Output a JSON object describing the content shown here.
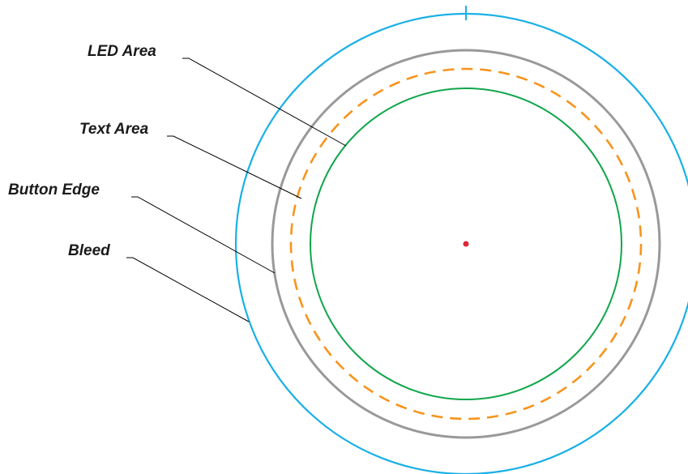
{
  "labels": {
    "led_area": "LED Area",
    "text_area": "Text Area",
    "button_edge": "Button Edge",
    "bleed": "Bleed"
  },
  "colors": {
    "bleed": "#1ab0e6",
    "button_edge": "#999999",
    "text_area": "#f7941d",
    "led_area": "#10a64a",
    "center_point": "#e0263a",
    "leader_line": "#000000",
    "label_text": "#1a1a1a"
  }
}
